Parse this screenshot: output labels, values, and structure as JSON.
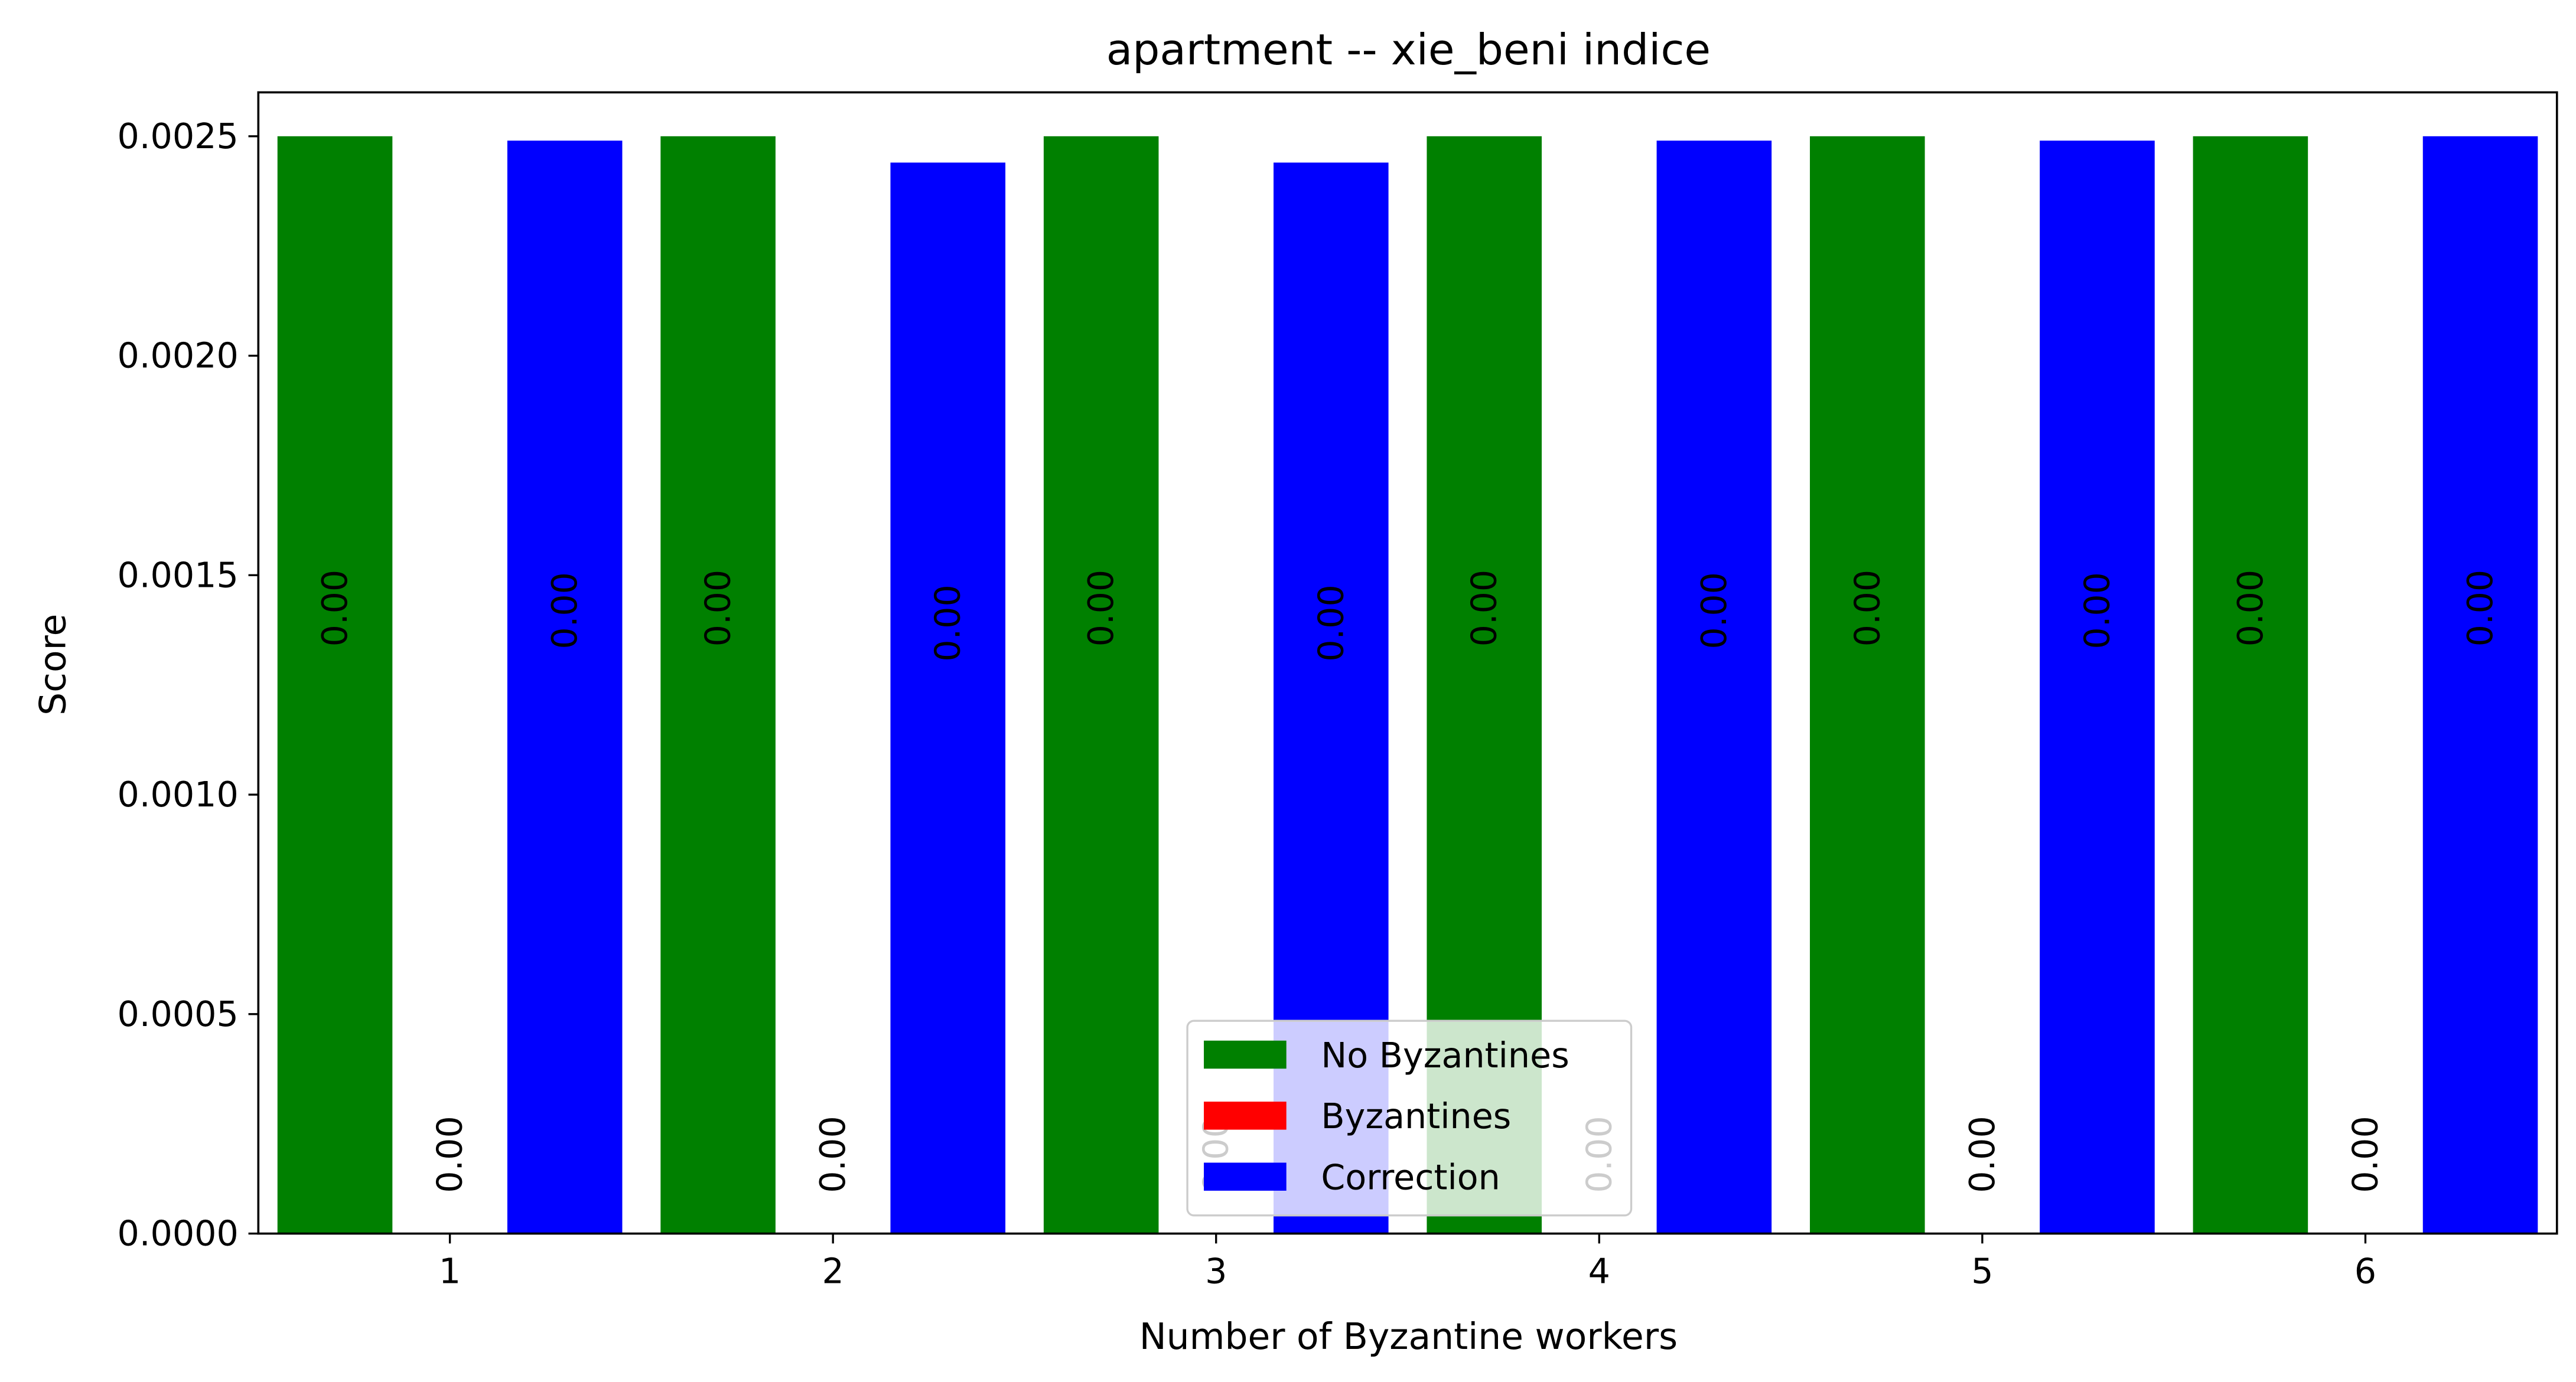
{
  "chart_data": {
    "type": "bar",
    "title": "apartment -- xie_beni indice",
    "xlabel": "Number of Byzantine workers",
    "ylabel": "Score",
    "categories": [
      "1",
      "2",
      "3",
      "4",
      "5",
      "6"
    ],
    "ylim": [
      0,
      0.0026
    ],
    "yticks": [
      0,
      0.0005,
      0.001,
      0.0015,
      0.002,
      0.0025
    ],
    "ytick_labels": [
      "0.0000",
      "0.0005",
      "0.0010",
      "0.0015",
      "0.0020",
      "0.0025"
    ],
    "grid": false,
    "legend_position": "lower center",
    "series": [
      {
        "name": "No Byzantines",
        "color": "#008000",
        "values": [
          0.0025,
          0.0025,
          0.0025,
          0.0025,
          0.0025,
          0.0025
        ],
        "labels": [
          "0.00",
          "0.00",
          "0.00",
          "0.00",
          "0.00",
          "0.00"
        ]
      },
      {
        "name": "Byzantines",
        "color": "#ff0000",
        "values": [
          0,
          0,
          0,
          0,
          0,
          0
        ],
        "labels": [
          "0.00",
          "0.00",
          "0.00",
          "0.00",
          "0.00",
          "0.00"
        ]
      },
      {
        "name": "Correction",
        "color": "#0000ff",
        "values": [
          0.00249,
          0.00244,
          0.00244,
          0.00249,
          0.00249,
          0.0025
        ],
        "labels": [
          "0.00",
          "0.00",
          "0.00",
          "0.00",
          "0.00",
          "0.00"
        ]
      }
    ]
  }
}
